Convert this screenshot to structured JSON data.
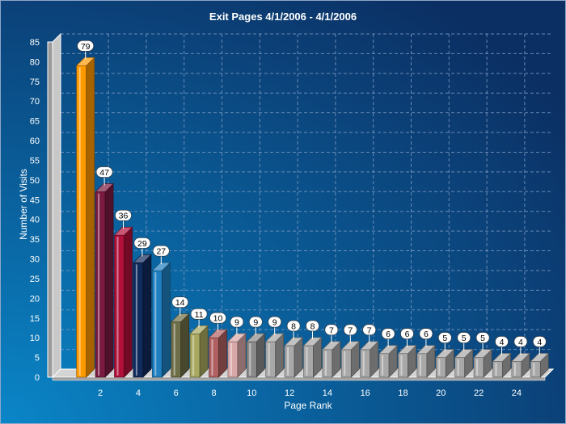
{
  "chart_data": {
    "type": "bar",
    "title": "Exit Pages 4/1/2006  - 4/1/2006",
    "xlabel": "Page Rank",
    "ylabel": "Number of Visits",
    "ylim": [
      0,
      85
    ],
    "ytick_step": 5,
    "grid": true,
    "legend": "none",
    "x_tick_labels": [
      "2",
      "4",
      "6",
      "8",
      "10",
      "12",
      "14",
      "16",
      "18",
      "20",
      "22",
      "24"
    ],
    "categories": [
      1,
      2,
      3,
      4,
      5,
      6,
      7,
      8,
      9,
      10,
      11,
      12,
      13,
      14,
      15,
      16,
      17,
      18,
      19,
      20,
      21,
      22,
      23,
      24,
      25
    ],
    "values": [
      79,
      47,
      36,
      29,
      27,
      14,
      11,
      10,
      9,
      9,
      9,
      8,
      8,
      7,
      7,
      7,
      6,
      6,
      6,
      5,
      5,
      5,
      4,
      4,
      4
    ],
    "bar_colors": [
      "#ff9900",
      "#7a1a40",
      "#b0103a",
      "#102a5c",
      "#1f7fc0",
      "#6e6e48",
      "#a8a860",
      "#b06060",
      "#d8a8a8",
      "#8a8a8a",
      "#a8a8a8",
      "#a8a8a8",
      "#a8a8a8",
      "#a8a8a8",
      "#a8a8a8",
      "#a8a8a8",
      "#a8a8a8",
      "#a8a8a8",
      "#a8a8a8",
      "#a8a8a8",
      "#a8a8a8",
      "#a8a8a8",
      "#a8a8a8",
      "#a8a8a8",
      "#a8a8a8"
    ],
    "background_colors": [
      "#0a86c8",
      "#0b2f63"
    ]
  }
}
